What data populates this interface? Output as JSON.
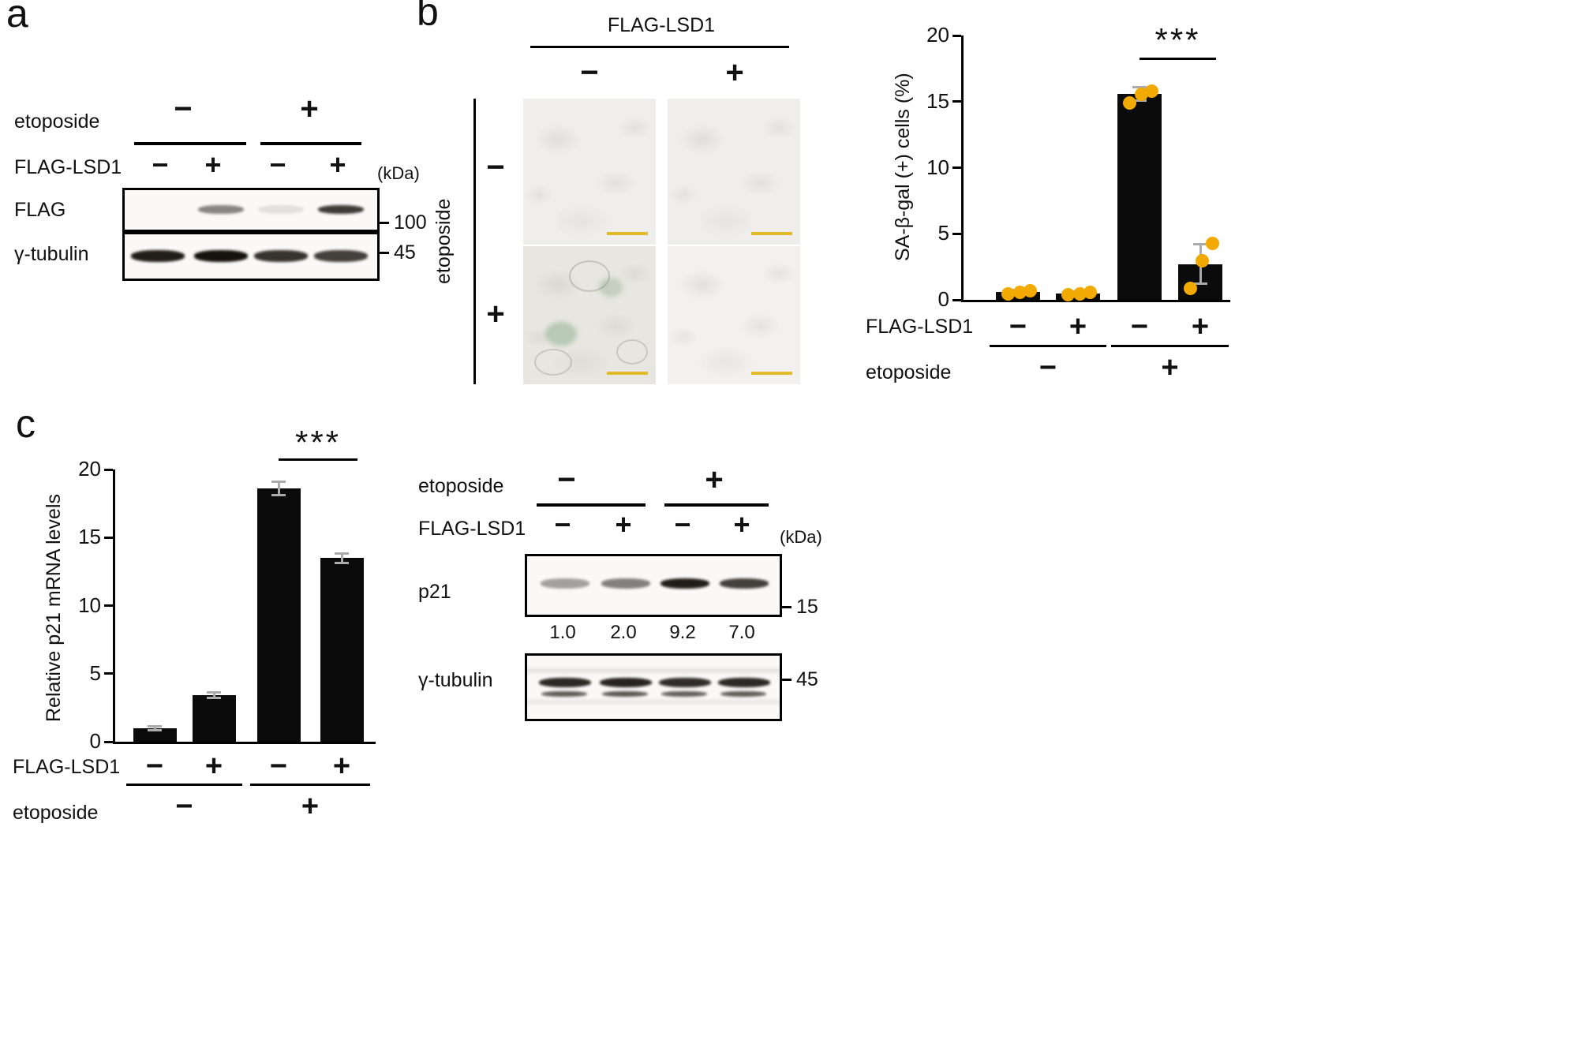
{
  "panel_a": {
    "label": "a",
    "etoposide_label": "etoposide",
    "flag_lsd1_label": "FLAG-LSD1",
    "kda_label": "(kDa)",
    "etoposide_signs": [
      "−",
      "+"
    ],
    "lane_signs": [
      "−",
      "+",
      "−",
      "+"
    ],
    "blot_flag": {
      "name": "FLAG",
      "marker": "100",
      "bands": [
        0,
        0.5,
        0.1,
        0.82
      ]
    },
    "blot_tubulin": {
      "name": "γ-tubulin",
      "marker": "45",
      "bands": [
        0.95,
        1,
        0.85,
        0.8
      ]
    }
  },
  "panel_b": {
    "label": "b",
    "col_title": "FLAG-LSD1",
    "col_signs": [
      "−",
      "+"
    ],
    "row_title": "etoposide",
    "row_signs": [
      "−",
      "+"
    ]
  },
  "panel_c": {
    "label": "c",
    "blot": {
      "etoposide_label": "etoposide",
      "flag_lsd1_label": "FLAG-LSD1",
      "kda_label": "(kDa)",
      "etoposide_signs": [
        "−",
        "+"
      ],
      "lane_signs": [
        "−",
        "+",
        "−",
        "+"
      ],
      "p21": {
        "name": "p21",
        "marker": "15",
        "bands": [
          0.38,
          0.52,
          0.95,
          0.8
        ],
        "quant": [
          "1.0",
          "2.0",
          "9.2",
          "7.0"
        ]
      },
      "tubulin": {
        "name": "γ-tubulin",
        "marker": "45",
        "bands": [
          0.9,
          0.92,
          0.88,
          0.9
        ]
      }
    }
  },
  "chart_data": [
    {
      "id": "sa_beta_gal_percent",
      "panel": "b",
      "type": "bar",
      "title": "",
      "ylabel": "SA-β-gal (+) cells (%)",
      "xlabel": "",
      "ylim": [
        0,
        20
      ],
      "yticks": [
        0,
        5,
        10,
        15,
        20
      ],
      "categories": [
        "FLAG-LSD1 − / etoposide −",
        "FLAG-LSD1 + / etoposide −",
        "FLAG-LSD1 − / etoposide +",
        "FLAG-LSD1 + / etoposide +"
      ],
      "values": [
        0.6,
        0.5,
        15.6,
        2.7
      ],
      "errors": [
        0.15,
        0.1,
        0.5,
        1.5
      ],
      "points": [
        [
          0.5,
          0.6,
          0.7
        ],
        [
          0.4,
          0.5,
          0.6
        ],
        [
          14.9,
          15.6,
          15.8
        ],
        [
          0.9,
          3.0,
          4.3
        ]
      ],
      "bar_color": "#0b0b0b",
      "point_color": "#F2A900",
      "error_color": "#ABABAB",
      "grid": "off",
      "significance": {
        "label": "***",
        "bars": [
          2,
          3
        ]
      },
      "x_rows": [
        {
          "label": "FLAG-LSD1",
          "signs": [
            "−",
            "+",
            "−",
            "+"
          ]
        },
        {
          "label": "etoposide",
          "signs": [
            "−",
            "+"
          ]
        }
      ]
    },
    {
      "id": "relative_p21_mrna",
      "panel": "c",
      "type": "bar",
      "title": "",
      "ylabel": "Relative p21 mRNA levels",
      "xlabel": "",
      "ylim": [
        0,
        20
      ],
      "yticks": [
        0,
        5,
        10,
        15,
        20
      ],
      "categories": [
        "FLAG-LSD1 − / etoposide −",
        "FLAG-LSD1 + / etoposide −",
        "FLAG-LSD1 − / etoposide +",
        "FLAG-LSD1 + / etoposide +"
      ],
      "values": [
        1.0,
        3.4,
        18.6,
        13.5
      ],
      "errors": [
        0.15,
        0.2,
        0.5,
        0.35
      ],
      "bar_color": "#0b0b0b",
      "error_color": "#ABABAB",
      "grid": "off",
      "significance": {
        "label": "***",
        "bars": [
          2,
          3
        ]
      },
      "x_rows": [
        {
          "label": "FLAG-LSD1",
          "signs": [
            "−",
            "+",
            "−",
            "+"
          ]
        },
        {
          "label": "etoposide",
          "signs": [
            "−",
            "+"
          ]
        }
      ]
    }
  ]
}
